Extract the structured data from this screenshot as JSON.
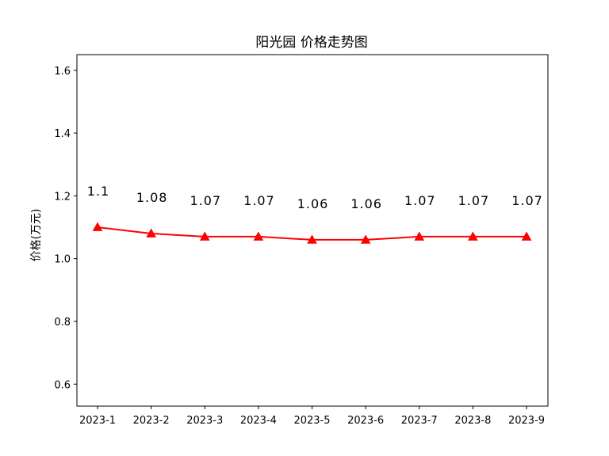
{
  "chart_data": {
    "type": "line",
    "title": "阳光园 价格走势图",
    "xlabel": "",
    "ylabel": "价格(万元)",
    "categories": [
      "2023-1",
      "2023-2",
      "2023-3",
      "2023-4",
      "2023-5",
      "2023-6",
      "2023-7",
      "2023-8",
      "2023-9"
    ],
    "values": [
      1.1,
      1.08,
      1.07,
      1.07,
      1.06,
      1.06,
      1.07,
      1.07,
      1.07
    ],
    "data_labels": [
      "1.1",
      "1.08",
      "1.07",
      "1.07",
      "1.06",
      "1.06",
      "1.07",
      "1.07",
      "1.07"
    ],
    "ylim": [
      0.53,
      1.65
    ],
    "yticks": [
      0.6,
      0.8,
      1.0,
      1.2,
      1.4,
      1.6
    ],
    "ytick_labels": [
      "0.6",
      "0.8",
      "1.0",
      "1.2",
      "1.4",
      "1.6"
    ],
    "grid": false,
    "legend": "none",
    "line_color": "#ff0000",
    "marker": "triangle"
  }
}
